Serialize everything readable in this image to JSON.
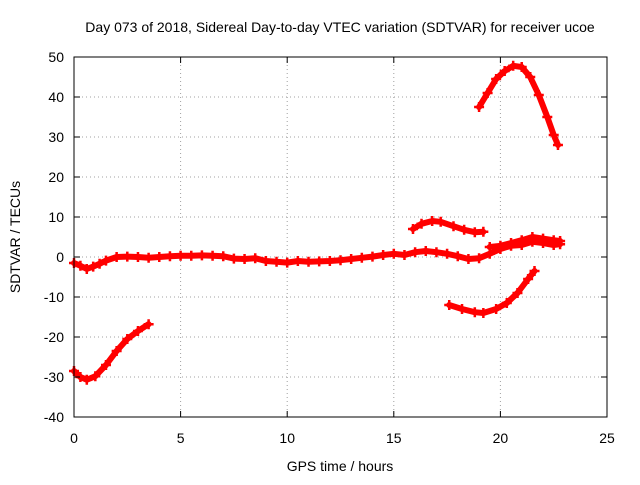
{
  "chart_data": {
    "type": "scatter",
    "title": "Day 073 of 2018, Sidereal Day-to-day VTEC variation (SDTVAR) for receiver ucoe",
    "xlabel": "GPS time / hours",
    "ylabel": "SDTVAR / TECUs",
    "xlim": [
      0,
      25
    ],
    "ylim": [
      -40,
      50
    ],
    "xticks": [
      0,
      5,
      10,
      15,
      20,
      25
    ],
    "yticks": [
      -40,
      -30,
      -20,
      -10,
      0,
      10,
      20,
      30,
      40,
      50
    ],
    "xtick_labels": [
      "0",
      "5",
      "10",
      "15",
      "20",
      "25"
    ],
    "ytick_labels": [
      "-40",
      "-30",
      "-20",
      "-10",
      "0",
      "10",
      "20",
      "30",
      "40",
      "50"
    ],
    "grid": true,
    "marker": "plus",
    "series_color": "#ff0000",
    "series": [
      {
        "name": "arc-near-zero",
        "points": [
          [
            0.0,
            -1.5
          ],
          [
            0.3,
            -2.2
          ],
          [
            0.6,
            -3.0
          ],
          [
            0.9,
            -2.4
          ],
          [
            1.2,
            -1.7
          ],
          [
            1.5,
            -0.9
          ],
          [
            2.0,
            0.0
          ],
          [
            2.5,
            0.1
          ],
          [
            3.0,
            0.0
          ],
          [
            3.5,
            -0.2
          ],
          [
            4.0,
            0.0
          ],
          [
            4.5,
            0.2
          ],
          [
            5.0,
            0.3
          ],
          [
            5.5,
            0.3
          ],
          [
            6.0,
            0.4
          ],
          [
            6.5,
            0.3
          ],
          [
            7.0,
            0.2
          ],
          [
            7.5,
            -0.4
          ],
          [
            8.0,
            -0.5
          ],
          [
            8.5,
            -0.3
          ],
          [
            9.0,
            -1.0
          ],
          [
            9.5,
            -1.2
          ],
          [
            10.0,
            -1.4
          ],
          [
            10.5,
            -1.0
          ],
          [
            11.0,
            -1.2
          ],
          [
            11.5,
            -1.1
          ],
          [
            12.0,
            -1.0
          ],
          [
            12.5,
            -0.8
          ],
          [
            13.0,
            -0.5
          ],
          [
            13.5,
            -0.2
          ],
          [
            14.0,
            0.1
          ],
          [
            14.5,
            0.5
          ],
          [
            15.0,
            0.8
          ],
          [
            15.5,
            0.5
          ],
          [
            16.0,
            1.2
          ],
          [
            16.5,
            1.5
          ],
          [
            17.0,
            1.2
          ],
          [
            17.5,
            0.8
          ],
          [
            18.0,
            0.2
          ],
          [
            18.5,
            -0.5
          ],
          [
            19.0,
            -0.3
          ],
          [
            19.5,
            0.8
          ],
          [
            20.0,
            2.0
          ],
          [
            20.5,
            2.8
          ],
          [
            21.0,
            3.0
          ],
          [
            21.5,
            3.8
          ],
          [
            22.0,
            3.5
          ],
          [
            22.5,
            3.0
          ],
          [
            22.8,
            3.2
          ]
        ]
      },
      {
        "name": "arc-early-dip",
        "points": [
          [
            0.0,
            -28.5
          ],
          [
            0.3,
            -30.0
          ],
          [
            0.6,
            -30.7
          ],
          [
            1.0,
            -29.8
          ],
          [
            1.5,
            -27.0
          ],
          [
            2.0,
            -23.5
          ],
          [
            2.5,
            -20.5
          ],
          [
            3.0,
            -18.5
          ],
          [
            3.5,
            -16.8
          ]
        ]
      },
      {
        "name": "arc-hump-16-19",
        "points": [
          [
            15.9,
            7.0
          ],
          [
            16.3,
            8.3
          ],
          [
            16.8,
            9.0
          ],
          [
            17.2,
            8.8
          ],
          [
            17.8,
            7.7
          ],
          [
            18.3,
            6.8
          ],
          [
            18.8,
            6.2
          ],
          [
            19.2,
            6.3
          ]
        ]
      },
      {
        "name": "arc-afternoon-low",
        "points": [
          [
            17.6,
            -12.0
          ],
          [
            18.2,
            -13.0
          ],
          [
            18.8,
            -13.8
          ],
          [
            19.2,
            -14.0
          ],
          [
            19.8,
            -13.0
          ],
          [
            20.3,
            -11.5
          ],
          [
            20.8,
            -9.0
          ],
          [
            21.3,
            -5.5
          ],
          [
            21.6,
            -3.5
          ]
        ]
      },
      {
        "name": "arc-second-positive",
        "points": [
          [
            19.5,
            2.5
          ],
          [
            20.0,
            2.8
          ],
          [
            20.5,
            3.5
          ],
          [
            21.0,
            4.2
          ],
          [
            21.5,
            5.0
          ],
          [
            22.0,
            4.6
          ],
          [
            22.5,
            4.2
          ],
          [
            22.8,
            4.0
          ]
        ]
      },
      {
        "name": "arc-peak",
        "points": [
          [
            19.0,
            37.5
          ],
          [
            19.4,
            41.0
          ],
          [
            19.8,
            44.5
          ],
          [
            20.2,
            46.5
          ],
          [
            20.6,
            47.8
          ],
          [
            21.0,
            47.5
          ],
          [
            21.4,
            45.0
          ],
          [
            21.8,
            40.5
          ],
          [
            22.2,
            35.0
          ],
          [
            22.5,
            30.5
          ],
          [
            22.7,
            28.0
          ]
        ]
      }
    ]
  }
}
